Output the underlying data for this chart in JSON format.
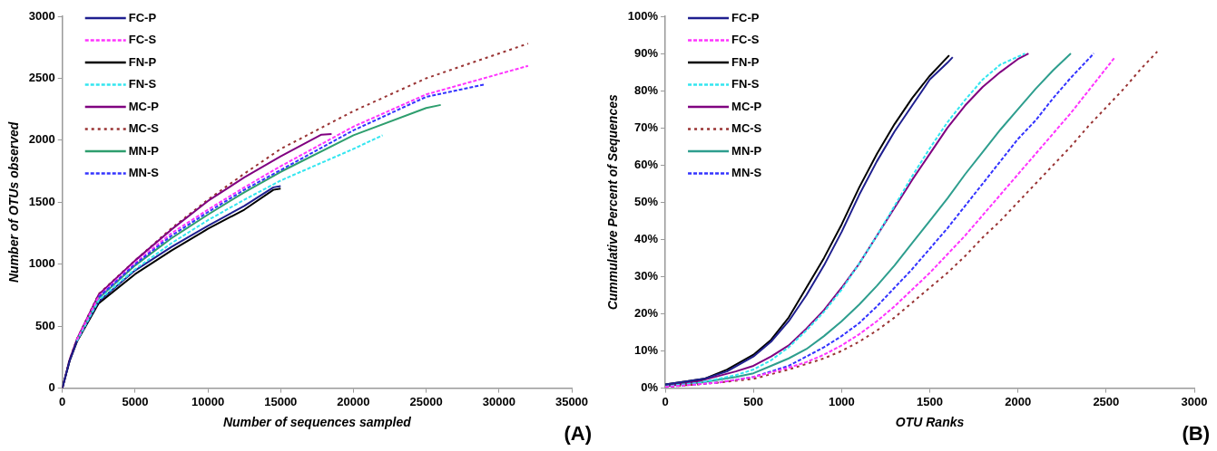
{
  "chart_data": [
    {
      "type": "line",
      "xlabel": "Number of sequences sampled",
      "ylabel": "Number of OTUs observed",
      "annotations": [
        "(A)"
      ],
      "legend": "top left",
      "grid": false,
      "marker": "none",
      "xlim": [
        0,
        35000
      ],
      "xticks": [
        0,
        5000,
        10000,
        15000,
        20000,
        25000,
        30000,
        35000
      ],
      "ylim": [
        0,
        3000
      ],
      "yticks": [
        0,
        500,
        1000,
        1500,
        2000,
        2500,
        3000
      ],
      "series": [
        {
          "name": "FC-P",
          "color": "#1f1f8f",
          "line_style": "solid",
          "x": [
            0,
            500,
            1000,
            2500,
            5000,
            7500,
            10000,
            12500,
            14500,
            15000
          ],
          "values": [
            0,
            220,
            380,
            700,
            950,
            1140,
            1310,
            1470,
            1620,
            1630
          ]
        },
        {
          "name": "FC-S",
          "color": "#ff33ff",
          "line_style": "dashed",
          "x": [
            1000,
            2500,
            5000,
            7500,
            10000,
            12500,
            15000,
            20000,
            25000,
            32000
          ],
          "values": [
            390,
            740,
            1010,
            1250,
            1440,
            1620,
            1790,
            2110,
            2370,
            2600
          ]
        },
        {
          "name": "FN-P",
          "color": "#000000",
          "line_style": "solid",
          "x": [
            0,
            500,
            1000,
            2500,
            5000,
            7500,
            10000,
            12500,
            14500,
            15000
          ],
          "values": [
            0,
            220,
            375,
            685,
            920,
            1110,
            1285,
            1440,
            1600,
            1610
          ]
        },
        {
          "name": "FN-S",
          "color": "#33e6f0",
          "line_style": "dashed",
          "x": [
            1000,
            2500,
            5000,
            7500,
            10000,
            12500,
            15000,
            20000,
            22000
          ],
          "values": [
            380,
            710,
            960,
            1170,
            1355,
            1520,
            1675,
            1930,
            2040
          ]
        },
        {
          "name": "MC-P",
          "color": "#800080",
          "line_style": "solid",
          "x": [
            0,
            500,
            1000,
            2500,
            5000,
            7500,
            10000,
            12500,
            15000,
            17800,
            18500
          ],
          "values": [
            0,
            230,
            395,
            755,
            1030,
            1280,
            1510,
            1700,
            1870,
            2045,
            2050
          ]
        },
        {
          "name": "MC-S",
          "color": "#993333",
          "line_style": "dotted",
          "x": [
            0,
            500,
            1000,
            2500,
            5000,
            7500,
            10000,
            12500,
            15000,
            20000,
            25000,
            32000
          ],
          "values": [
            0,
            230,
            395,
            760,
            1030,
            1290,
            1520,
            1730,
            1930,
            2235,
            2500,
            2780
          ]
        },
        {
          "name": "MN-P",
          "color": "#2e9e6e",
          "line_style": "solid",
          "x": [
            1000,
            2500,
            5000,
            7500,
            10000,
            12500,
            15000,
            20000,
            25000,
            26000
          ],
          "values": [
            385,
            725,
            990,
            1210,
            1400,
            1580,
            1745,
            2040,
            2260,
            2285
          ]
        },
        {
          "name": "MN-S",
          "color": "#3333ff",
          "line_style": "dashed",
          "x": [
            2500,
            5000,
            7500,
            10000,
            12500,
            15000,
            20000,
            25000,
            29000
          ],
          "values": [
            735,
            1000,
            1230,
            1420,
            1600,
            1760,
            2080,
            2350,
            2450
          ]
        }
      ]
    },
    {
      "type": "line",
      "xlabel": "OTU Ranks",
      "ylabel": "Cummulative Percent of Sequences",
      "annotations": [
        "(B)"
      ],
      "legend": "top left",
      "grid": false,
      "marker": "none",
      "xlim": [
        0,
        3000
      ],
      "xticks": [
        0,
        500,
        1000,
        1500,
        2000,
        2500,
        3000
      ],
      "ylim": [
        0,
        100
      ],
      "yticks": [
        {
          "value": 0,
          "label": "0%"
        },
        {
          "value": 10,
          "label": "10%"
        },
        {
          "value": 20,
          "label": "20%"
        },
        {
          "value": 30,
          "label": "30%"
        },
        {
          "value": 40,
          "label": "40%"
        },
        {
          "value": 50,
          "label": "50%"
        },
        {
          "value": 60,
          "label": "60%"
        },
        {
          "value": 70,
          "label": "70%"
        },
        {
          "value": 80,
          "label": "80%"
        },
        {
          "value": 90,
          "label": "90%"
        },
        {
          "value": 100,
          "label": "100%"
        }
      ],
      "series": [
        {
          "name": "FC-P",
          "color": "#1f1f8f",
          "line_style": "solid",
          "x": [
            0,
            220,
            350,
            500,
            600,
            700,
            800,
            900,
            1000,
            1100,
            1200,
            1300,
            1400,
            1500,
            1600,
            1630
          ],
          "values": [
            1,
            2.5,
            4.5,
            8.5,
            12.5,
            18,
            25,
            33,
            42,
            52,
            61,
            69,
            76,
            83,
            87.5,
            89
          ]
        },
        {
          "name": "FC-S",
          "color": "#ff33ff",
          "line_style": "dashed",
          "x": [
            0,
            300,
            500,
            700,
            800,
            900,
            1000,
            1100,
            1200,
            1300,
            1400,
            1500,
            1600,
            1700,
            1800,
            1900,
            2000,
            2100,
            2200,
            2300,
            2400,
            2550
          ],
          "values": [
            0.3,
            1.5,
            3,
            5.5,
            7,
            9,
            11.5,
            14.5,
            18,
            22,
            26.5,
            31,
            36,
            41,
            46.5,
            52,
            57.5,
            63,
            68.5,
            74,
            80,
            89
          ]
        },
        {
          "name": "FN-P",
          "color": "#000000",
          "line_style": "solid",
          "x": [
            0,
            220,
            350,
            500,
            600,
            700,
            800,
            900,
            1000,
            1100,
            1200,
            1300,
            1400,
            1500,
            1600,
            1610
          ],
          "values": [
            1,
            2.5,
            5,
            9,
            13,
            19,
            27,
            35,
            44,
            54,
            63,
            71,
            78,
            84,
            89,
            89.5
          ]
        },
        {
          "name": "FN-S",
          "color": "#33e6f0",
          "line_style": "dashed",
          "x": [
            0,
            200,
            400,
            500,
            600,
            700,
            800,
            900,
            1000,
            1100,
            1200,
            1300,
            1400,
            1500,
            1600,
            1700,
            1800,
            1900,
            2040
          ],
          "values": [
            0.5,
            1.5,
            3.5,
            5,
            7.5,
            11,
            15.5,
            20.5,
            26.5,
            33.5,
            41,
            49,
            57,
            64.5,
            71.5,
            77.5,
            83,
            87,
            90
          ]
        },
        {
          "name": "MC-P",
          "color": "#800080",
          "line_style": "solid",
          "x": [
            0,
            200,
            400,
            500,
            600,
            700,
            800,
            900,
            1000,
            1100,
            1200,
            1300,
            1400,
            1500,
            1600,
            1700,
            1800,
            1900,
            2000,
            2060
          ],
          "values": [
            0.5,
            2,
            4.5,
            6,
            8.5,
            11.5,
            16,
            21,
            27,
            33.5,
            41,
            48.5,
            56,
            63,
            70,
            76,
            81,
            85,
            88.5,
            90
          ]
        },
        {
          "name": "MC-S",
          "color": "#993333",
          "line_style": "dotted",
          "x": [
            0,
            300,
            500,
            700,
            800,
            900,
            1000,
            1100,
            1200,
            1300,
            1400,
            1500,
            1600,
            1700,
            1800,
            1900,
            2000,
            2100,
            2200,
            2300,
            2400,
            2500,
            2600,
            2700,
            2790
          ],
          "values": [
            0.3,
            1.5,
            2.5,
            5,
            6.5,
            8,
            10,
            12.5,
            15.5,
            19,
            23,
            27,
            31,
            35.5,
            40.5,
            45,
            50,
            55,
            60,
            65,
            70.5,
            75.5,
            80.5,
            86,
            90.5
          ]
        },
        {
          "name": "MN-P",
          "color": "#2e9e8e",
          "line_style": "solid",
          "x": [
            0,
            200,
            400,
            500,
            600,
            700,
            800,
            900,
            1000,
            1100,
            1200,
            1300,
            1400,
            1500,
            1600,
            1700,
            1800,
            1900,
            2000,
            2100,
            2200,
            2300
          ],
          "values": [
            0.5,
            1.5,
            3,
            4,
            6,
            8,
            10.5,
            14,
            18,
            22.5,
            27.5,
            33,
            39,
            45,
            51,
            57.5,
            63.5,
            69.5,
            75,
            80.5,
            85.5,
            90
          ]
        },
        {
          "name": "MN-S",
          "color": "#3333ff",
          "line_style": "dashed",
          "x": [
            0,
            300,
            500,
            700,
            800,
            900,
            1000,
            1100,
            1200,
            1300,
            1400,
            1500,
            1600,
            1700,
            1800,
            1900,
            2000,
            2100,
            2200,
            2300,
            2430
          ],
          "values": [
            0.3,
            1.5,
            3,
            6,
            8.5,
            11,
            14,
            17.5,
            22,
            27,
            32,
            37.5,
            43,
            49,
            55,
            61,
            67,
            72,
            78,
            83.5,
            90
          ]
        }
      ]
    }
  ]
}
